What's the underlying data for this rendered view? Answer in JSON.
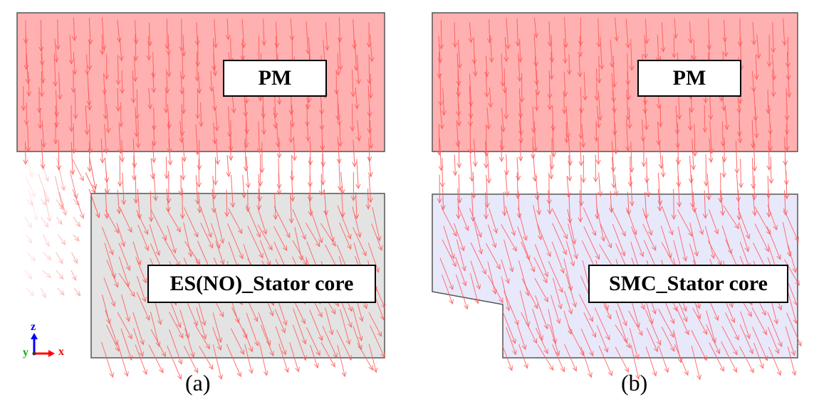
{
  "panels": [
    {
      "id": "a",
      "pm_label": "PM",
      "core_label": "ES(NO)_Stator core",
      "caption": "(a)",
      "pm_color": "#ffb1b1",
      "core_color": "#e3e3e3"
    },
    {
      "id": "b",
      "pm_label": "PM",
      "core_label": "SMC_Stator core",
      "caption": "(b)",
      "pm_color": "#ffb1b1",
      "core_color": "#e8e8fb"
    }
  ],
  "axis_triad": {
    "z": "z",
    "y": "y",
    "x": "x",
    "z_color": "#0000ff",
    "y_color": "#00b000",
    "x_color": "#ff0000"
  },
  "arrow_color": "#ff5a5a"
}
